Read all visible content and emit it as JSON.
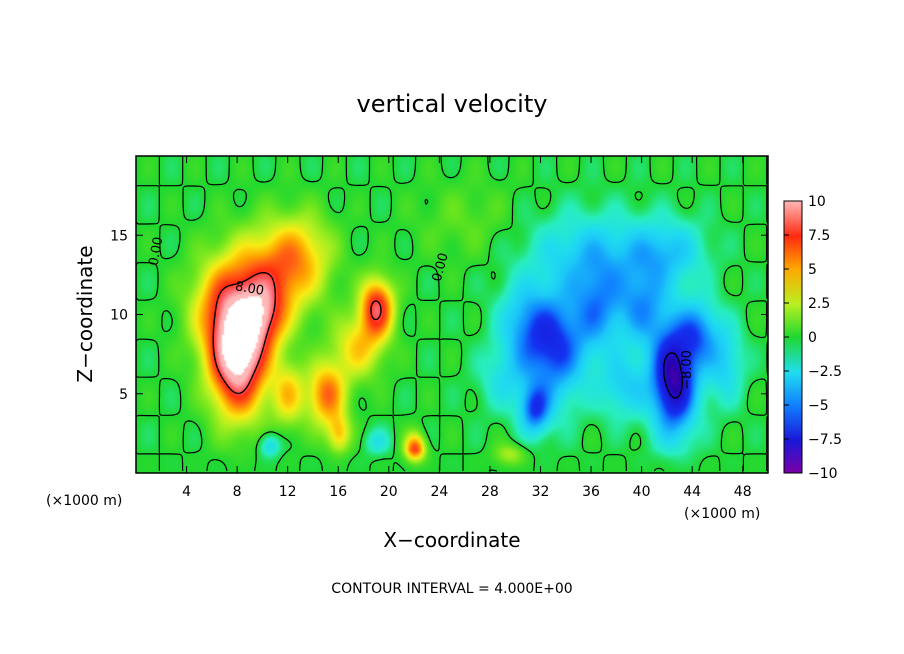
{
  "chart_data": {
    "type": "heatmap",
    "title": "vertical velocity",
    "xlabel": "X−coordinate",
    "ylabel": "Z−coordinate",
    "x_unit_note": "(×1000 m)",
    "x_unit_note_left": "(×1000 m)",
    "footer": "CONTOUR INTERVAL = 4.000E+00",
    "xlim": [
      0,
      50
    ],
    "ylim": [
      0,
      20
    ],
    "x_ticks": [
      4,
      8,
      12,
      16,
      20,
      24,
      28,
      32,
      36,
      40,
      44,
      48
    ],
    "y_ticks": [
      5,
      10,
      15
    ],
    "x_tick_labels": [
      "4",
      "8",
      "12",
      "16",
      "20",
      "24",
      "28",
      "32",
      "36",
      "40",
      "44",
      "48"
    ],
    "y_tick_labels": [
      "5",
      "10",
      "15"
    ],
    "colorbar": {
      "min": -10,
      "max": 10,
      "tick_values": [
        10,
        7.5,
        5,
        2.5,
        0,
        -2.5,
        -5,
        -7.5,
        -10
      ],
      "tick_labels": [
        "10",
        "7.5",
        "5",
        "2.5",
        "0",
        "−2.5",
        "−5",
        "−7.5",
        "−10"
      ]
    },
    "contour_interval": 4.0,
    "contour_labels": [
      {
        "text": "0.00",
        "x": 1.5,
        "z": 14.0
      },
      {
        "text": "8.00",
        "x": 9.0,
        "z": 11.7
      },
      {
        "text": "0.00",
        "x": 24.0,
        "z": 13.0
      },
      {
        "text": "−8.00",
        "x": 43.5,
        "z": 6.5
      }
    ],
    "features": [
      {
        "kind": "updraft",
        "x": 8.0,
        "z": 7.5,
        "peak": 14
      },
      {
        "kind": "updraft",
        "x": 10.0,
        "z": 10.0,
        "peak": 9
      },
      {
        "kind": "updraft",
        "x": 19.0,
        "z": 10.5,
        "peak": 8
      },
      {
        "kind": "updraft",
        "x": 15.0,
        "z": 5.0,
        "peak": 7
      },
      {
        "kind": "downdraft",
        "x": 33.0,
        "z": 8.0,
        "peak": -7
      },
      {
        "kind": "downdraft",
        "x": 42.5,
        "z": 6.0,
        "peak": -11
      }
    ]
  }
}
